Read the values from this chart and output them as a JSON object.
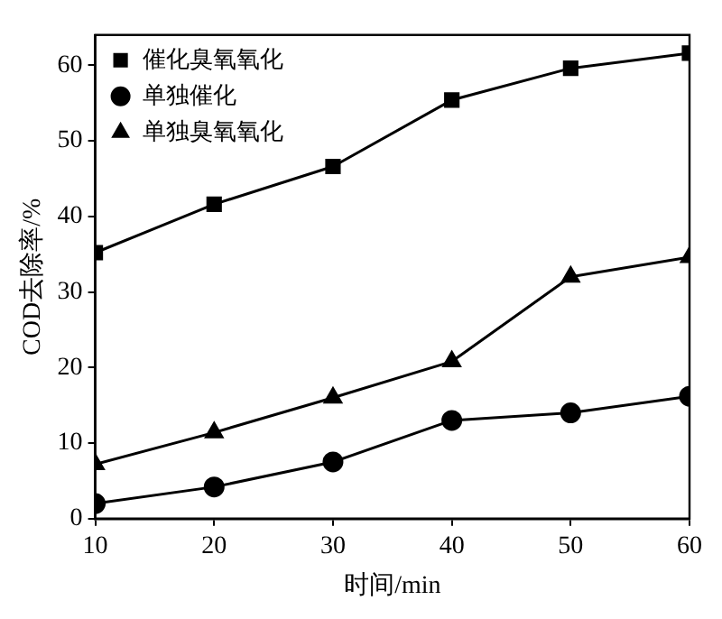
{
  "chart_data": {
    "type": "line",
    "xlabel": "时间/min",
    "ylabel": "COD去除率/%",
    "x": [
      10,
      20,
      30,
      40,
      50,
      60
    ],
    "series": [
      {
        "name": "催化臭氧氧化",
        "color": "#000000",
        "marker": "square",
        "values": [
          35.2,
          41.6,
          46.6,
          55.4,
          59.6,
          61.6
        ]
      },
      {
        "name": "单独催化",
        "color": "#000000",
        "marker": "circle",
        "values": [
          2,
          4.2,
          7.5,
          13,
          14,
          16.2
        ]
      },
      {
        "name": "单独臭氧氧化",
        "color": "#000000",
        "marker": "triangle",
        "values": [
          7.2,
          11.4,
          16,
          20.8,
          32,
          34.6
        ]
      }
    ],
    "xlim": [
      10,
      60
    ],
    "xticks": [
      10,
      20,
      30,
      40,
      50,
      60
    ],
    "ylim": [
      0,
      64
    ],
    "yticks": [
      0,
      10,
      20,
      30,
      40,
      50,
      60
    ],
    "grid": false,
    "legend": "top left",
    "line_style": "solid"
  }
}
